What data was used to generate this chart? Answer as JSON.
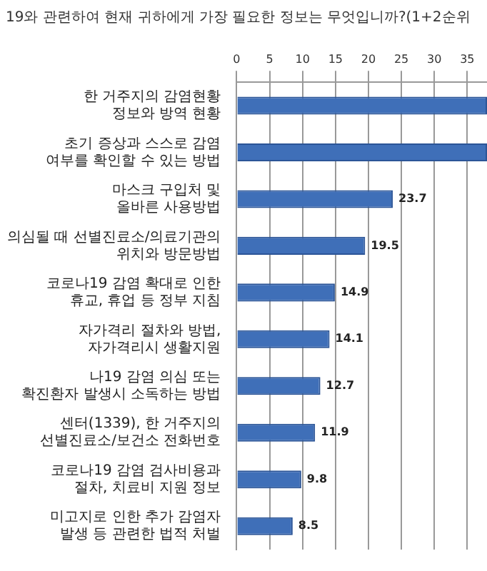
{
  "chart_data": {
    "type": "bar",
    "orientation": "horizontal",
    "title": "19와 관련하여 현재 귀하에게 가장 필요한 정보는 무엇입니까?(1+2순위",
    "categories": [
      "한 거주지의 감염현황 정보와 방역 현황",
      "초기 증상과 스스로 감염 여부를 확인할 수 있는 방법",
      "마스크 구입처 및 올바른 사용방법",
      "의심될 때 선별진료소/의료기관의 위치와 방문방법",
      "코로나19 감염 확대로 인한 휴교, 휴업 등 정부 지침",
      "자가격리 절차와 방법, 자가격리시 생활지원",
      "나19 감염 의심 또는 확진환자 발생시 소독하는 방법",
      "센터(1339), 한 거주지의 선별진료소/보건소 전화번호",
      "코로나19 감염 검사비용과 절차, 치료비 지원 정보",
      "미고지로 인한 추가 감염자 발생 등 관련한 법적 처벌"
    ],
    "values": [
      38,
      38,
      23.7,
      19.5,
      14.9,
      14.1,
      12.7,
      11.9,
      9.8,
      8.5
    ],
    "value_labels": [
      null,
      null,
      "23.7",
      "19.5",
      "14.9",
      "14.1",
      "12.7",
      "11.9",
      "9.8",
      "8.5"
    ],
    "color": "#3f6fb8",
    "xlim": [
      0,
      38
    ],
    "xticks": [
      0,
      5,
      10,
      15,
      20,
      25,
      30,
      35
    ],
    "grid": "x",
    "legend": false
  }
}
